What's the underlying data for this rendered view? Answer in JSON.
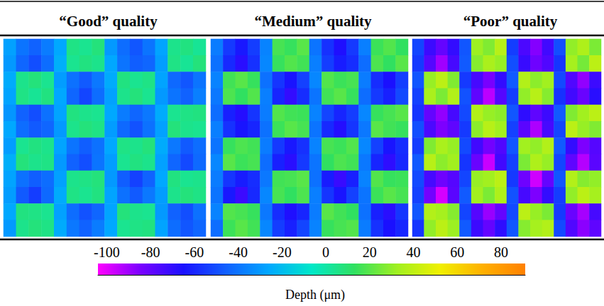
{
  "chart_data": {
    "type": "heatmap",
    "panels": [
      {
        "title": "“Good” quality",
        "cells": [
          [
            -28,
            -40,
            -45,
            -38,
            -26,
            6,
            4,
            8,
            -30,
            -42,
            -48,
            -40,
            -27,
            5,
            7,
            3
          ],
          [
            -30,
            -44,
            -50,
            -42,
            -24,
            4,
            7,
            5,
            -26,
            -40,
            -46,
            -44,
            -29,
            6,
            3,
            8
          ],
          [
            -25,
            5,
            8,
            4,
            -29,
            -41,
            -47,
            -39,
            -25,
            7,
            4,
            6,
            -27,
            -43,
            -48,
            -40
          ],
          [
            -27,
            6,
            3,
            7,
            -26,
            -44,
            -52,
            -42,
            -28,
            5,
            8,
            4,
            -30,
            -40,
            -45,
            -37
          ],
          [
            -31,
            -45,
            -50,
            -41,
            -27,
            7,
            5,
            4,
            -26,
            -38,
            -44,
            -39,
            -25,
            4,
            6,
            7
          ],
          [
            -26,
            -42,
            -47,
            -44,
            -30,
            5,
            8,
            6,
            -29,
            -43,
            -49,
            -41,
            -28,
            8,
            5,
            4
          ],
          [
            -29,
            4,
            7,
            5,
            -27,
            -40,
            -46,
            -41,
            -26,
            6,
            5,
            8,
            -25,
            -39,
            -47,
            -42
          ],
          [
            -24,
            8,
            5,
            6,
            -30,
            -45,
            -50,
            -40,
            -29,
            4,
            7,
            5,
            -28,
            -44,
            -51,
            -43
          ],
          [
            -27,
            -41,
            -46,
            -42,
            -28,
            5,
            6,
            8,
            -30,
            -46,
            -53,
            -45,
            -26,
            7,
            4,
            5
          ],
          [
            -29,
            -47,
            -54,
            -43,
            -25,
            6,
            4,
            7,
            -27,
            -41,
            -47,
            -39,
            -29,
            5,
            8,
            6
          ],
          [
            -26,
            7,
            6,
            4,
            -28,
            -42,
            -49,
            -44,
            -27,
            8,
            5,
            4,
            -30,
            -45,
            -50,
            -41
          ],
          [
            -30,
            5,
            8,
            6,
            -25,
            -39,
            -45,
            -38,
            -26,
            4,
            6,
            7,
            -27,
            -42,
            -48,
            -44
          ]
        ]
      },
      {
        "title": "“Medium” quality",
        "cells": [
          [
            -38,
            -55,
            -63,
            -54,
            -36,
            17,
            14,
            20,
            -40,
            -57,
            -66,
            -55,
            -37,
            15,
            19,
            13
          ],
          [
            -41,
            -59,
            -68,
            -57,
            -35,
            14,
            19,
            16,
            -37,
            -54,
            -62,
            -58,
            -42,
            18,
            13,
            20
          ],
          [
            -36,
            16,
            20,
            14,
            -41,
            -56,
            -64,
            -53,
            -35,
            19,
            15,
            17,
            -38,
            -58,
            -65,
            -54
          ],
          [
            -39,
            18,
            13,
            19,
            -37,
            -60,
            -70,
            -58,
            -40,
            16,
            20,
            14,
            -42,
            -55,
            -61,
            -51
          ],
          [
            -42,
            -61,
            -67,
            -56,
            -38,
            19,
            16,
            15,
            -36,
            -52,
            -60,
            -54,
            -35,
            14,
            17,
            20
          ],
          [
            -37,
            -57,
            -64,
            -60,
            -41,
            15,
            20,
            17,
            -40,
            -59,
            -67,
            -56,
            -39,
            20,
            16,
            14
          ],
          [
            -40,
            14,
            18,
            16,
            -38,
            -55,
            -63,
            -57,
            -36,
            17,
            15,
            19,
            -35,
            -53,
            -64,
            -58
          ],
          [
            -35,
            20,
            15,
            17,
            -42,
            -61,
            -68,
            -55,
            -40,
            13,
            18,
            16,
            -39,
            -60,
            -69,
            -59
          ],
          [
            -38,
            -56,
            -62,
            -58,
            -39,
            16,
            17,
            20,
            -41,
            -62,
            -71,
            -61,
            -36,
            19,
            14,
            15
          ],
          [
            -40,
            -63,
            -72,
            -59,
            -35,
            17,
            13,
            18,
            -37,
            -56,
            -64,
            -53,
            -40,
            15,
            20,
            17
          ],
          [
            -36,
            19,
            17,
            14,
            -39,
            -58,
            -66,
            -60,
            -38,
            20,
            16,
            13,
            -41,
            -61,
            -68,
            -56
          ],
          [
            -42,
            15,
            20,
            16,
            -35,
            -54,
            -61,
            -52,
            -36,
            14,
            17,
            19,
            -38,
            -57,
            -65,
            -60
          ]
        ]
      },
      {
        "title": "“Poor” quality",
        "cells": [
          [
            -52,
            -72,
            -80,
            -70,
            -48,
            32,
            27,
            38,
            -54,
            -75,
            -86,
            -73,
            -50,
            30,
            36,
            26
          ],
          [
            -55,
            -77,
            -90,
            -74,
            -47,
            28,
            35,
            31,
            -50,
            -71,
            -82,
            -76,
            -56,
            34,
            25,
            39
          ],
          [
            -48,
            31,
            39,
            27,
            -55,
            -74,
            -84,
            -70,
            -47,
            37,
            29,
            33,
            -51,
            -76,
            -88,
            -72
          ],
          [
            -53,
            35,
            26,
            37,
            -49,
            -79,
            -94,
            -77,
            -54,
            30,
            38,
            28,
            -57,
            -73,
            -81,
            -68
          ],
          [
            -56,
            -80,
            -88,
            -74,
            -51,
            37,
            31,
            29,
            -48,
            -69,
            -79,
            -72,
            -47,
            27,
            33,
            39
          ],
          [
            -50,
            -75,
            -85,
            -79,
            -55,
            29,
            38,
            33,
            -53,
            -78,
            -92,
            -74,
            -52,
            39,
            31,
            27
          ],
          [
            -54,
            27,
            35,
            31,
            -51,
            -73,
            -83,
            -76,
            -48,
            33,
            30,
            37,
            -47,
            -70,
            -85,
            -77
          ],
          [
            -47,
            38,
            29,
            33,
            -56,
            -81,
            -96,
            -73,
            -53,
            26,
            36,
            31,
            -52,
            -79,
            -93,
            -78
          ],
          [
            -51,
            -74,
            -82,
            -77,
            -52,
            31,
            33,
            39,
            -55,
            -82,
            -97,
            -80,
            -48,
            37,
            28,
            30
          ],
          [
            -53,
            -83,
            -98,
            -78,
            -47,
            33,
            26,
            36,
            -49,
            -74,
            -85,
            -70,
            -54,
            30,
            39,
            34
          ],
          [
            -48,
            37,
            34,
            28,
            -52,
            -77,
            -89,
            -80,
            -51,
            39,
            31,
            26,
            -55,
            -81,
            -91,
            -74
          ],
          [
            -56,
            30,
            39,
            32,
            -47,
            -72,
            -80,
            -69,
            -48,
            28,
            34,
            37,
            -51,
            -76,
            -87,
            -79
          ]
        ]
      }
    ],
    "colorbar": {
      "label": "Depth (μm)",
      "range": [
        -104,
        91
      ],
      "ticks": [
        -100,
        -80,
        -60,
        -40,
        -20,
        0,
        20,
        40,
        60,
        80
      ],
      "colors": [
        "#ff00ff",
        "#7a00ff",
        "#1a10ff",
        "#1060ff",
        "#00a8ff",
        "#00e8c8",
        "#30e060",
        "#a0f020",
        "#f0f000",
        "#ffb000",
        "#ff8000"
      ]
    }
  }
}
